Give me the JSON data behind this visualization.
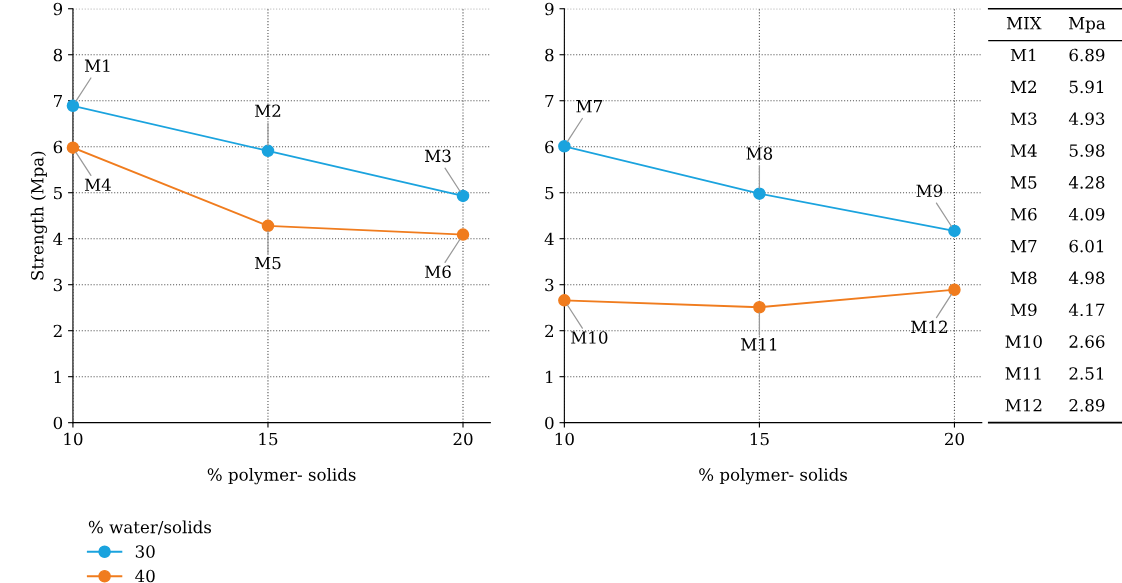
{
  "chart_data": [
    {
      "type": "line",
      "xlabel": "% polymer- solids",
      "ylabel": "Strength (Mpa)",
      "x": [
        10,
        15,
        20
      ],
      "xlim": [
        10,
        20.7
      ],
      "xticks": [
        10,
        15,
        20
      ],
      "ylim": [
        0,
        9
      ],
      "yticks": [
        0,
        1,
        2,
        3,
        4,
        5,
        6,
        7,
        8,
        9
      ],
      "grid": true,
      "marker": "circle",
      "line_style": "solid",
      "legend": "bottom",
      "legend_title": "% water/solids",
      "series": [
        {
          "name": "30",
          "color": "#1aa3de",
          "values": [
            6.89,
            5.91,
            4.93
          ]
        },
        {
          "name": "40",
          "color": "#f07c1e",
          "values": [
            5.98,
            4.28,
            4.09
          ]
        }
      ],
      "annotations": [
        {
          "text": "M1",
          "x": 10,
          "y": 6.89
        },
        {
          "text": "M2",
          "x": 15,
          "y": 5.91
        },
        {
          "text": "M3",
          "x": 20,
          "y": 4.93
        },
        {
          "text": "M4",
          "x": 10,
          "y": 5.98
        },
        {
          "text": "M5",
          "x": 15,
          "y": 4.28
        },
        {
          "text": "M6",
          "x": 20,
          "y": 4.09
        }
      ]
    },
    {
      "type": "line",
      "xlabel": "% polymer- solids",
      "x": [
        10,
        15,
        20
      ],
      "xlim": [
        10,
        20.7
      ],
      "xticks": [
        10,
        15,
        20
      ],
      "ylim": [
        0,
        9
      ],
      "yticks": [
        0,
        1,
        2,
        3,
        4,
        5,
        6,
        7,
        8,
        9
      ],
      "grid": true,
      "marker": "circle",
      "line_style": "solid",
      "series": [
        {
          "color": "#1aa3de",
          "values": [
            6.01,
            4.98,
            4.17
          ]
        },
        {
          "color": "#f07c1e",
          "values": [
            2.66,
            2.51,
            2.89
          ]
        }
      ],
      "annotations": [
        {
          "text": "M7",
          "x": 10,
          "y": 6.01
        },
        {
          "text": "M8",
          "x": 15,
          "y": 4.98
        },
        {
          "text": "M9",
          "x": 20,
          "y": 4.17
        },
        {
          "text": "M10",
          "x": 10,
          "y": 2.66
        },
        {
          "text": "M11",
          "x": 15,
          "y": 2.51
        },
        {
          "text": "M12",
          "x": 20,
          "y": 2.89
        }
      ]
    },
    {
      "type": "other",
      "annotations": [
        "MIX",
        "Mpa"
      ],
      "data_labels": true,
      "categories": [
        "M1",
        "M2",
        "M3",
        "M4",
        "M5",
        "M6",
        "M7",
        "M8",
        "M9",
        "M10",
        "M11",
        "M12"
      ],
      "values": [
        6.89,
        5.91,
        4.93,
        5.98,
        4.28,
        4.09,
        6.01,
        4.98,
        4.17,
        2.66,
        2.51,
        2.89
      ]
    }
  ]
}
